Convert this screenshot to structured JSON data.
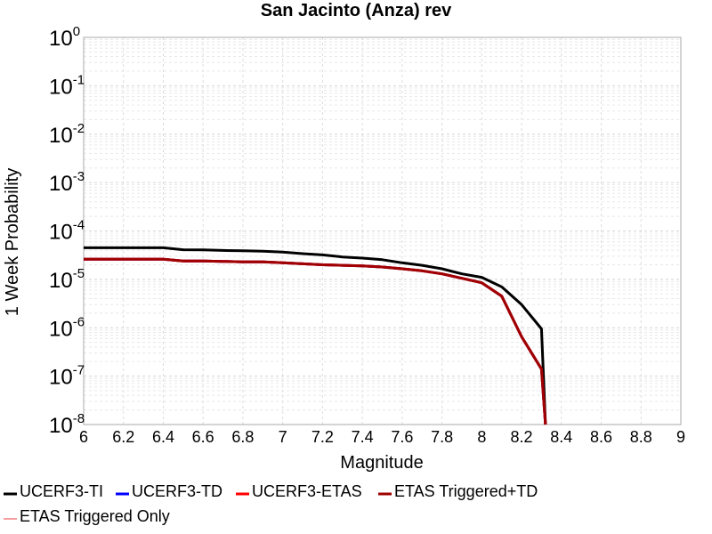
{
  "chart_data": {
    "type": "line",
    "title": "San Jacinto (Anza) rev",
    "xlabel": "Magnitude",
    "ylabel": "1 Week Probability",
    "xlim": [
      6,
      9
    ],
    "ylim": [
      1e-08,
      1
    ],
    "yscale": "log",
    "grid": true,
    "legend_position": "bottom",
    "x_ticks": [
      "6",
      "6.2",
      "6.4",
      "6.6",
      "6.8",
      "7",
      "7.2",
      "7.4",
      "7.6",
      "7.8",
      "8",
      "8.2",
      "8.4",
      "8.6",
      "8.8",
      "9"
    ],
    "y_ticks": [
      {
        "base": "10",
        "exp": "0"
      },
      {
        "base": "10",
        "exp": "-1"
      },
      {
        "base": "10",
        "exp": "-2"
      },
      {
        "base": "10",
        "exp": "-3"
      },
      {
        "base": "10",
        "exp": "-4"
      },
      {
        "base": "10",
        "exp": "-5"
      },
      {
        "base": "10",
        "exp": "-6"
      },
      {
        "base": "10",
        "exp": "-7"
      },
      {
        "base": "10",
        "exp": "-8"
      }
    ],
    "series": [
      {
        "name": "UCERF3-TI",
        "color": "#000000",
        "line_width": 3,
        "points": [
          [
            6.0,
            4.5e-05
          ],
          [
            6.1,
            4.5e-05
          ],
          [
            6.2,
            4.5e-05
          ],
          [
            6.3,
            4.5e-05
          ],
          [
            6.4,
            4.5e-05
          ],
          [
            6.5,
            4.1e-05
          ],
          [
            6.6,
            4.05e-05
          ],
          [
            6.7,
            3.95e-05
          ],
          [
            6.8,
            3.9e-05
          ],
          [
            6.9,
            3.8e-05
          ],
          [
            7.0,
            3.65e-05
          ],
          [
            7.1,
            3.4e-05
          ],
          [
            7.2,
            3.2e-05
          ],
          [
            7.3,
            2.9e-05
          ],
          [
            7.4,
            2.75e-05
          ],
          [
            7.5,
            2.55e-05
          ],
          [
            7.6,
            2.2e-05
          ],
          [
            7.7,
            1.95e-05
          ],
          [
            7.8,
            1.65e-05
          ],
          [
            7.9,
            1.3e-05
          ],
          [
            8.0,
            1.1e-05
          ],
          [
            8.1,
            7e-06
          ],
          [
            8.2,
            3e-06
          ],
          [
            8.3,
            9.5e-07
          ],
          [
            8.32,
            1e-08
          ]
        ]
      },
      {
        "name": "UCERF3-TD",
        "color": "#0000ff",
        "line_width": 3,
        "points": [
          [
            6.0,
            2.6e-05
          ],
          [
            6.1,
            2.6e-05
          ],
          [
            6.2,
            2.6e-05
          ],
          [
            6.3,
            2.6e-05
          ],
          [
            6.4,
            2.6e-05
          ],
          [
            6.5,
            2.4e-05
          ],
          [
            6.6,
            2.4e-05
          ],
          [
            6.7,
            2.35e-05
          ],
          [
            6.8,
            2.3e-05
          ],
          [
            6.9,
            2.3e-05
          ],
          [
            7.0,
            2.2e-05
          ],
          [
            7.1,
            2.1e-05
          ],
          [
            7.2,
            2e-05
          ],
          [
            7.3,
            1.95e-05
          ],
          [
            7.4,
            1.9e-05
          ],
          [
            7.5,
            1.8e-05
          ],
          [
            7.6,
            1.65e-05
          ],
          [
            7.7,
            1.5e-05
          ],
          [
            7.8,
            1.3e-05
          ],
          [
            7.9,
            1.05e-05
          ],
          [
            8.0,
            8.5e-06
          ],
          [
            8.1,
            4.5e-06
          ],
          [
            8.2,
            6.5e-07
          ],
          [
            8.3,
            1.4e-07
          ],
          [
            8.32,
            1e-08
          ]
        ]
      },
      {
        "name": "UCERF3-ETAS",
        "color": "#ff0000",
        "line_width": 3,
        "points": [
          [
            6.0,
            2.6e-05
          ],
          [
            6.1,
            2.6e-05
          ],
          [
            6.2,
            2.6e-05
          ],
          [
            6.3,
            2.6e-05
          ],
          [
            6.4,
            2.6e-05
          ],
          [
            6.5,
            2.4e-05
          ],
          [
            6.6,
            2.4e-05
          ],
          [
            6.7,
            2.35e-05
          ],
          [
            6.8,
            2.3e-05
          ],
          [
            6.9,
            2.3e-05
          ],
          [
            7.0,
            2.2e-05
          ],
          [
            7.1,
            2.1e-05
          ],
          [
            7.2,
            2e-05
          ],
          [
            7.3,
            1.95e-05
          ],
          [
            7.4,
            1.9e-05
          ],
          [
            7.5,
            1.8e-05
          ],
          [
            7.6,
            1.65e-05
          ],
          [
            7.7,
            1.5e-05
          ],
          [
            7.8,
            1.3e-05
          ],
          [
            7.9,
            1.05e-05
          ],
          [
            8.0,
            8.5e-06
          ],
          [
            8.1,
            4.5e-06
          ],
          [
            8.2,
            6.5e-07
          ],
          [
            8.3,
            1.4e-07
          ],
          [
            8.32,
            1e-08
          ]
        ]
      },
      {
        "name": "ETAS Triggered+TD",
        "color": "#a00000",
        "line_width": 3,
        "points": [
          [
            6.0,
            2.6e-05
          ],
          [
            6.1,
            2.6e-05
          ],
          [
            6.2,
            2.6e-05
          ],
          [
            6.3,
            2.6e-05
          ],
          [
            6.4,
            2.6e-05
          ],
          [
            6.5,
            2.4e-05
          ],
          [
            6.6,
            2.4e-05
          ],
          [
            6.7,
            2.35e-05
          ],
          [
            6.8,
            2.3e-05
          ],
          [
            6.9,
            2.3e-05
          ],
          [
            7.0,
            2.2e-05
          ],
          [
            7.1,
            2.1e-05
          ],
          [
            7.2,
            2e-05
          ],
          [
            7.3,
            1.95e-05
          ],
          [
            7.4,
            1.9e-05
          ],
          [
            7.5,
            1.8e-05
          ],
          [
            7.6,
            1.65e-05
          ],
          [
            7.7,
            1.5e-05
          ],
          [
            7.8,
            1.3e-05
          ],
          [
            7.9,
            1.05e-05
          ],
          [
            8.0,
            8.5e-06
          ],
          [
            8.1,
            4.5e-06
          ],
          [
            8.2,
            6.5e-07
          ],
          [
            8.3,
            1.4e-07
          ],
          [
            8.32,
            1e-08
          ]
        ]
      },
      {
        "name": "ETAS Triggered Only",
        "color": "#f08080",
        "line_width": 1.5,
        "points": []
      }
    ]
  }
}
